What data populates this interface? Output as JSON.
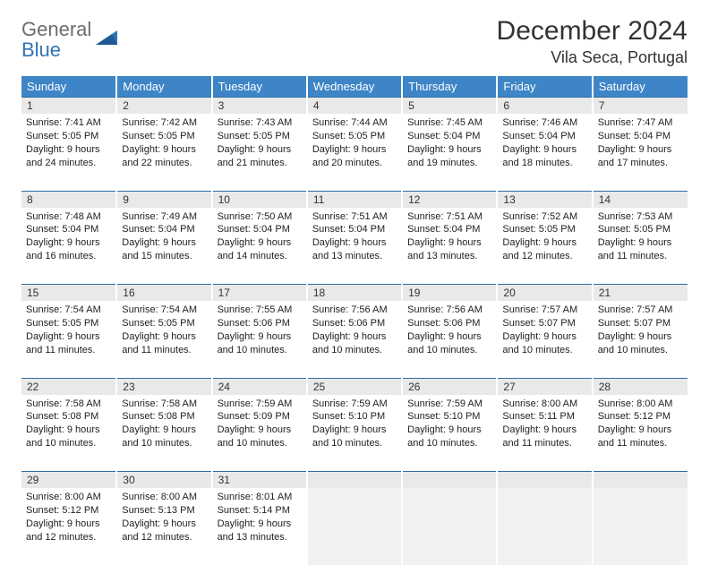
{
  "logo": {
    "word1": "General",
    "word2": "Blue"
  },
  "title": "December 2024",
  "location": "Vila Seca, Portugal",
  "colors": {
    "header_bg": "#3d85c6",
    "header_text": "#ffffff",
    "daynum_bg": "#e9e9e9",
    "daynum_border_top": "#2f6ca3",
    "logo_gray": "#6d6d6d",
    "logo_blue": "#2f73b5",
    "page_bg": "#ffffff",
    "cell_text": "#222222"
  },
  "weekdays": [
    "Sunday",
    "Monday",
    "Tuesday",
    "Wednesday",
    "Thursday",
    "Friday",
    "Saturday"
  ],
  "weeks": [
    [
      {
        "n": "1",
        "sr": "7:41 AM",
        "ss": "5:05 PM",
        "dl": "9 hours and 24 minutes."
      },
      {
        "n": "2",
        "sr": "7:42 AM",
        "ss": "5:05 PM",
        "dl": "9 hours and 22 minutes."
      },
      {
        "n": "3",
        "sr": "7:43 AM",
        "ss": "5:05 PM",
        "dl": "9 hours and 21 minutes."
      },
      {
        "n": "4",
        "sr": "7:44 AM",
        "ss": "5:05 PM",
        "dl": "9 hours and 20 minutes."
      },
      {
        "n": "5",
        "sr": "7:45 AM",
        "ss": "5:04 PM",
        "dl": "9 hours and 19 minutes."
      },
      {
        "n": "6",
        "sr": "7:46 AM",
        "ss": "5:04 PM",
        "dl": "9 hours and 18 minutes."
      },
      {
        "n": "7",
        "sr": "7:47 AM",
        "ss": "5:04 PM",
        "dl": "9 hours and 17 minutes."
      }
    ],
    [
      {
        "n": "8",
        "sr": "7:48 AM",
        "ss": "5:04 PM",
        "dl": "9 hours and 16 minutes."
      },
      {
        "n": "9",
        "sr": "7:49 AM",
        "ss": "5:04 PM",
        "dl": "9 hours and 15 minutes."
      },
      {
        "n": "10",
        "sr": "7:50 AM",
        "ss": "5:04 PM",
        "dl": "9 hours and 14 minutes."
      },
      {
        "n": "11",
        "sr": "7:51 AM",
        "ss": "5:04 PM",
        "dl": "9 hours and 13 minutes."
      },
      {
        "n": "12",
        "sr": "7:51 AM",
        "ss": "5:04 PM",
        "dl": "9 hours and 13 minutes."
      },
      {
        "n": "13",
        "sr": "7:52 AM",
        "ss": "5:05 PM",
        "dl": "9 hours and 12 minutes."
      },
      {
        "n": "14",
        "sr": "7:53 AM",
        "ss": "5:05 PM",
        "dl": "9 hours and 11 minutes."
      }
    ],
    [
      {
        "n": "15",
        "sr": "7:54 AM",
        "ss": "5:05 PM",
        "dl": "9 hours and 11 minutes."
      },
      {
        "n": "16",
        "sr": "7:54 AM",
        "ss": "5:05 PM",
        "dl": "9 hours and 11 minutes."
      },
      {
        "n": "17",
        "sr": "7:55 AM",
        "ss": "5:06 PM",
        "dl": "9 hours and 10 minutes."
      },
      {
        "n": "18",
        "sr": "7:56 AM",
        "ss": "5:06 PM",
        "dl": "9 hours and 10 minutes."
      },
      {
        "n": "19",
        "sr": "7:56 AM",
        "ss": "5:06 PM",
        "dl": "9 hours and 10 minutes."
      },
      {
        "n": "20",
        "sr": "7:57 AM",
        "ss": "5:07 PM",
        "dl": "9 hours and 10 minutes."
      },
      {
        "n": "21",
        "sr": "7:57 AM",
        "ss": "5:07 PM",
        "dl": "9 hours and 10 minutes."
      }
    ],
    [
      {
        "n": "22",
        "sr": "7:58 AM",
        "ss": "5:08 PM",
        "dl": "9 hours and 10 minutes."
      },
      {
        "n": "23",
        "sr": "7:58 AM",
        "ss": "5:08 PM",
        "dl": "9 hours and 10 minutes."
      },
      {
        "n": "24",
        "sr": "7:59 AM",
        "ss": "5:09 PM",
        "dl": "9 hours and 10 minutes."
      },
      {
        "n": "25",
        "sr": "7:59 AM",
        "ss": "5:10 PM",
        "dl": "9 hours and 10 minutes."
      },
      {
        "n": "26",
        "sr": "7:59 AM",
        "ss": "5:10 PM",
        "dl": "9 hours and 10 minutes."
      },
      {
        "n": "27",
        "sr": "8:00 AM",
        "ss": "5:11 PM",
        "dl": "9 hours and 11 minutes."
      },
      {
        "n": "28",
        "sr": "8:00 AM",
        "ss": "5:12 PM",
        "dl": "9 hours and 11 minutes."
      }
    ],
    [
      {
        "n": "29",
        "sr": "8:00 AM",
        "ss": "5:12 PM",
        "dl": "9 hours and 12 minutes."
      },
      {
        "n": "30",
        "sr": "8:00 AM",
        "ss": "5:13 PM",
        "dl": "9 hours and 12 minutes."
      },
      {
        "n": "31",
        "sr": "8:01 AM",
        "ss": "5:14 PM",
        "dl": "9 hours and 13 minutes."
      },
      null,
      null,
      null,
      null
    ]
  ],
  "labels": {
    "sunrise": "Sunrise:",
    "sunset": "Sunset:",
    "daylight": "Daylight:"
  }
}
